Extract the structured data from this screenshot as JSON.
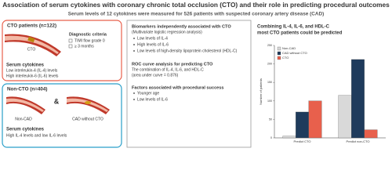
{
  "header": {
    "title": "Association of serum cytokines with coronary chronic total occlusion (CTO) and their role in predicting procedural outcomes",
    "subtitle": "Serum levels of 12 cytokines were measured for 526 patients with suspected coronary artery disease (CAD)"
  },
  "cto_panel": {
    "title": "CTO patients (n=122)",
    "vessel_label": "CTO",
    "criteria_title": "Diagnostic criteria",
    "criteria": [
      "TIMI flow grade 0",
      "≥ 3 months"
    ],
    "serum_title": "Serum cytokines",
    "serum_lines": [
      "Low interleukin-4 (IL-4) levels",
      "High interleukin-6 (IL-6) levels"
    ]
  },
  "non_cto_panel": {
    "title": "Non-CTO (n=404)",
    "groups": [
      "Non-CAD",
      "CAD without CTO"
    ],
    "connector": "&",
    "serum_title": "Serum cytokines",
    "serum_lines": [
      "High IL-4 levels and low IL-6 levels"
    ]
  },
  "middle": {
    "sections": [
      {
        "title": "Biomarkers independently associated with CTO",
        "subtitle": "(Multivariate logistic regression analysis)",
        "items": [
          "Low levels of IL-4",
          "High levels of IL-6",
          "Low levels of high-density lipoprotein cholesterol (HDL-C)"
        ]
      },
      {
        "title": "ROC curve analysis for predicting CTO",
        "lines": [
          "The combination of IL-4, IL-6, and HDL-C",
          "(area under curve = 0.876)"
        ]
      },
      {
        "title": "Factors associated with procedural success",
        "items": [
          "Younger age",
          "Low levels of IL-6"
        ]
      }
    ]
  },
  "right": {
    "title_lines": [
      "Combining IL-4, IL-6, and HDL-C",
      "most CTO patients could be predicted"
    ],
    "chart_data": {
      "type": "bar",
      "y_label": "Number of patients",
      "categories": [
        "Predict CTO",
        "Predict non-CTO"
      ],
      "series": [
        {
          "name": "Non-CAD",
          "color": "#d9d9d9",
          "values": [
            5,
            115
          ]
        },
        {
          "name": "CAD without CTO",
          "color": "#1f3b5c",
          "values": [
            70,
            212
          ]
        },
        {
          "name": "CTO",
          "color": "#e8604c",
          "values": [
            100,
            22
          ]
        }
      ],
      "ylim": [
        0,
        250
      ],
      "yticks": [
        0,
        50,
        100,
        150,
        200,
        250
      ],
      "legend": "top-left"
    }
  }
}
